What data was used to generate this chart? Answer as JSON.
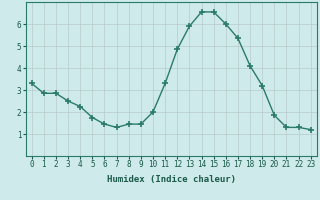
{
  "title": "",
  "xlabel": "Humidex (Indice chaleur)",
  "ylabel": "",
  "x": [
    0,
    1,
    2,
    3,
    4,
    5,
    6,
    7,
    8,
    9,
    10,
    11,
    12,
    13,
    14,
    15,
    16,
    17,
    18,
    19,
    20,
    21,
    22,
    23
  ],
  "y": [
    3.3,
    2.85,
    2.85,
    2.5,
    2.25,
    1.75,
    1.45,
    1.3,
    1.45,
    1.45,
    2.0,
    3.3,
    4.85,
    5.9,
    6.55,
    6.55,
    6.0,
    5.35,
    4.1,
    3.2,
    1.85,
    1.3,
    1.3,
    1.2
  ],
  "line_color": "#2a7a6a",
  "marker_color": "#2a7a6a",
  "bg_color": "#ceeaea",
  "grid_color": "#b8caca",
  "tick_label_color": "#1a5a4a",
  "axis_label_color": "#1a5a4a",
  "ylim": [
    0,
    7
  ],
  "xlim": [
    -0.5,
    23.5
  ],
  "yticks": [
    1,
    2,
    3,
    4,
    5,
    6
  ],
  "xticks": [
    0,
    1,
    2,
    3,
    4,
    5,
    6,
    7,
    8,
    9,
    10,
    11,
    12,
    13,
    14,
    15,
    16,
    17,
    18,
    19,
    20,
    21,
    22,
    23
  ],
  "xlabel_fontsize": 6.5,
  "tick_fontsize": 5.5,
  "line_width": 1.0,
  "marker_size": 4
}
